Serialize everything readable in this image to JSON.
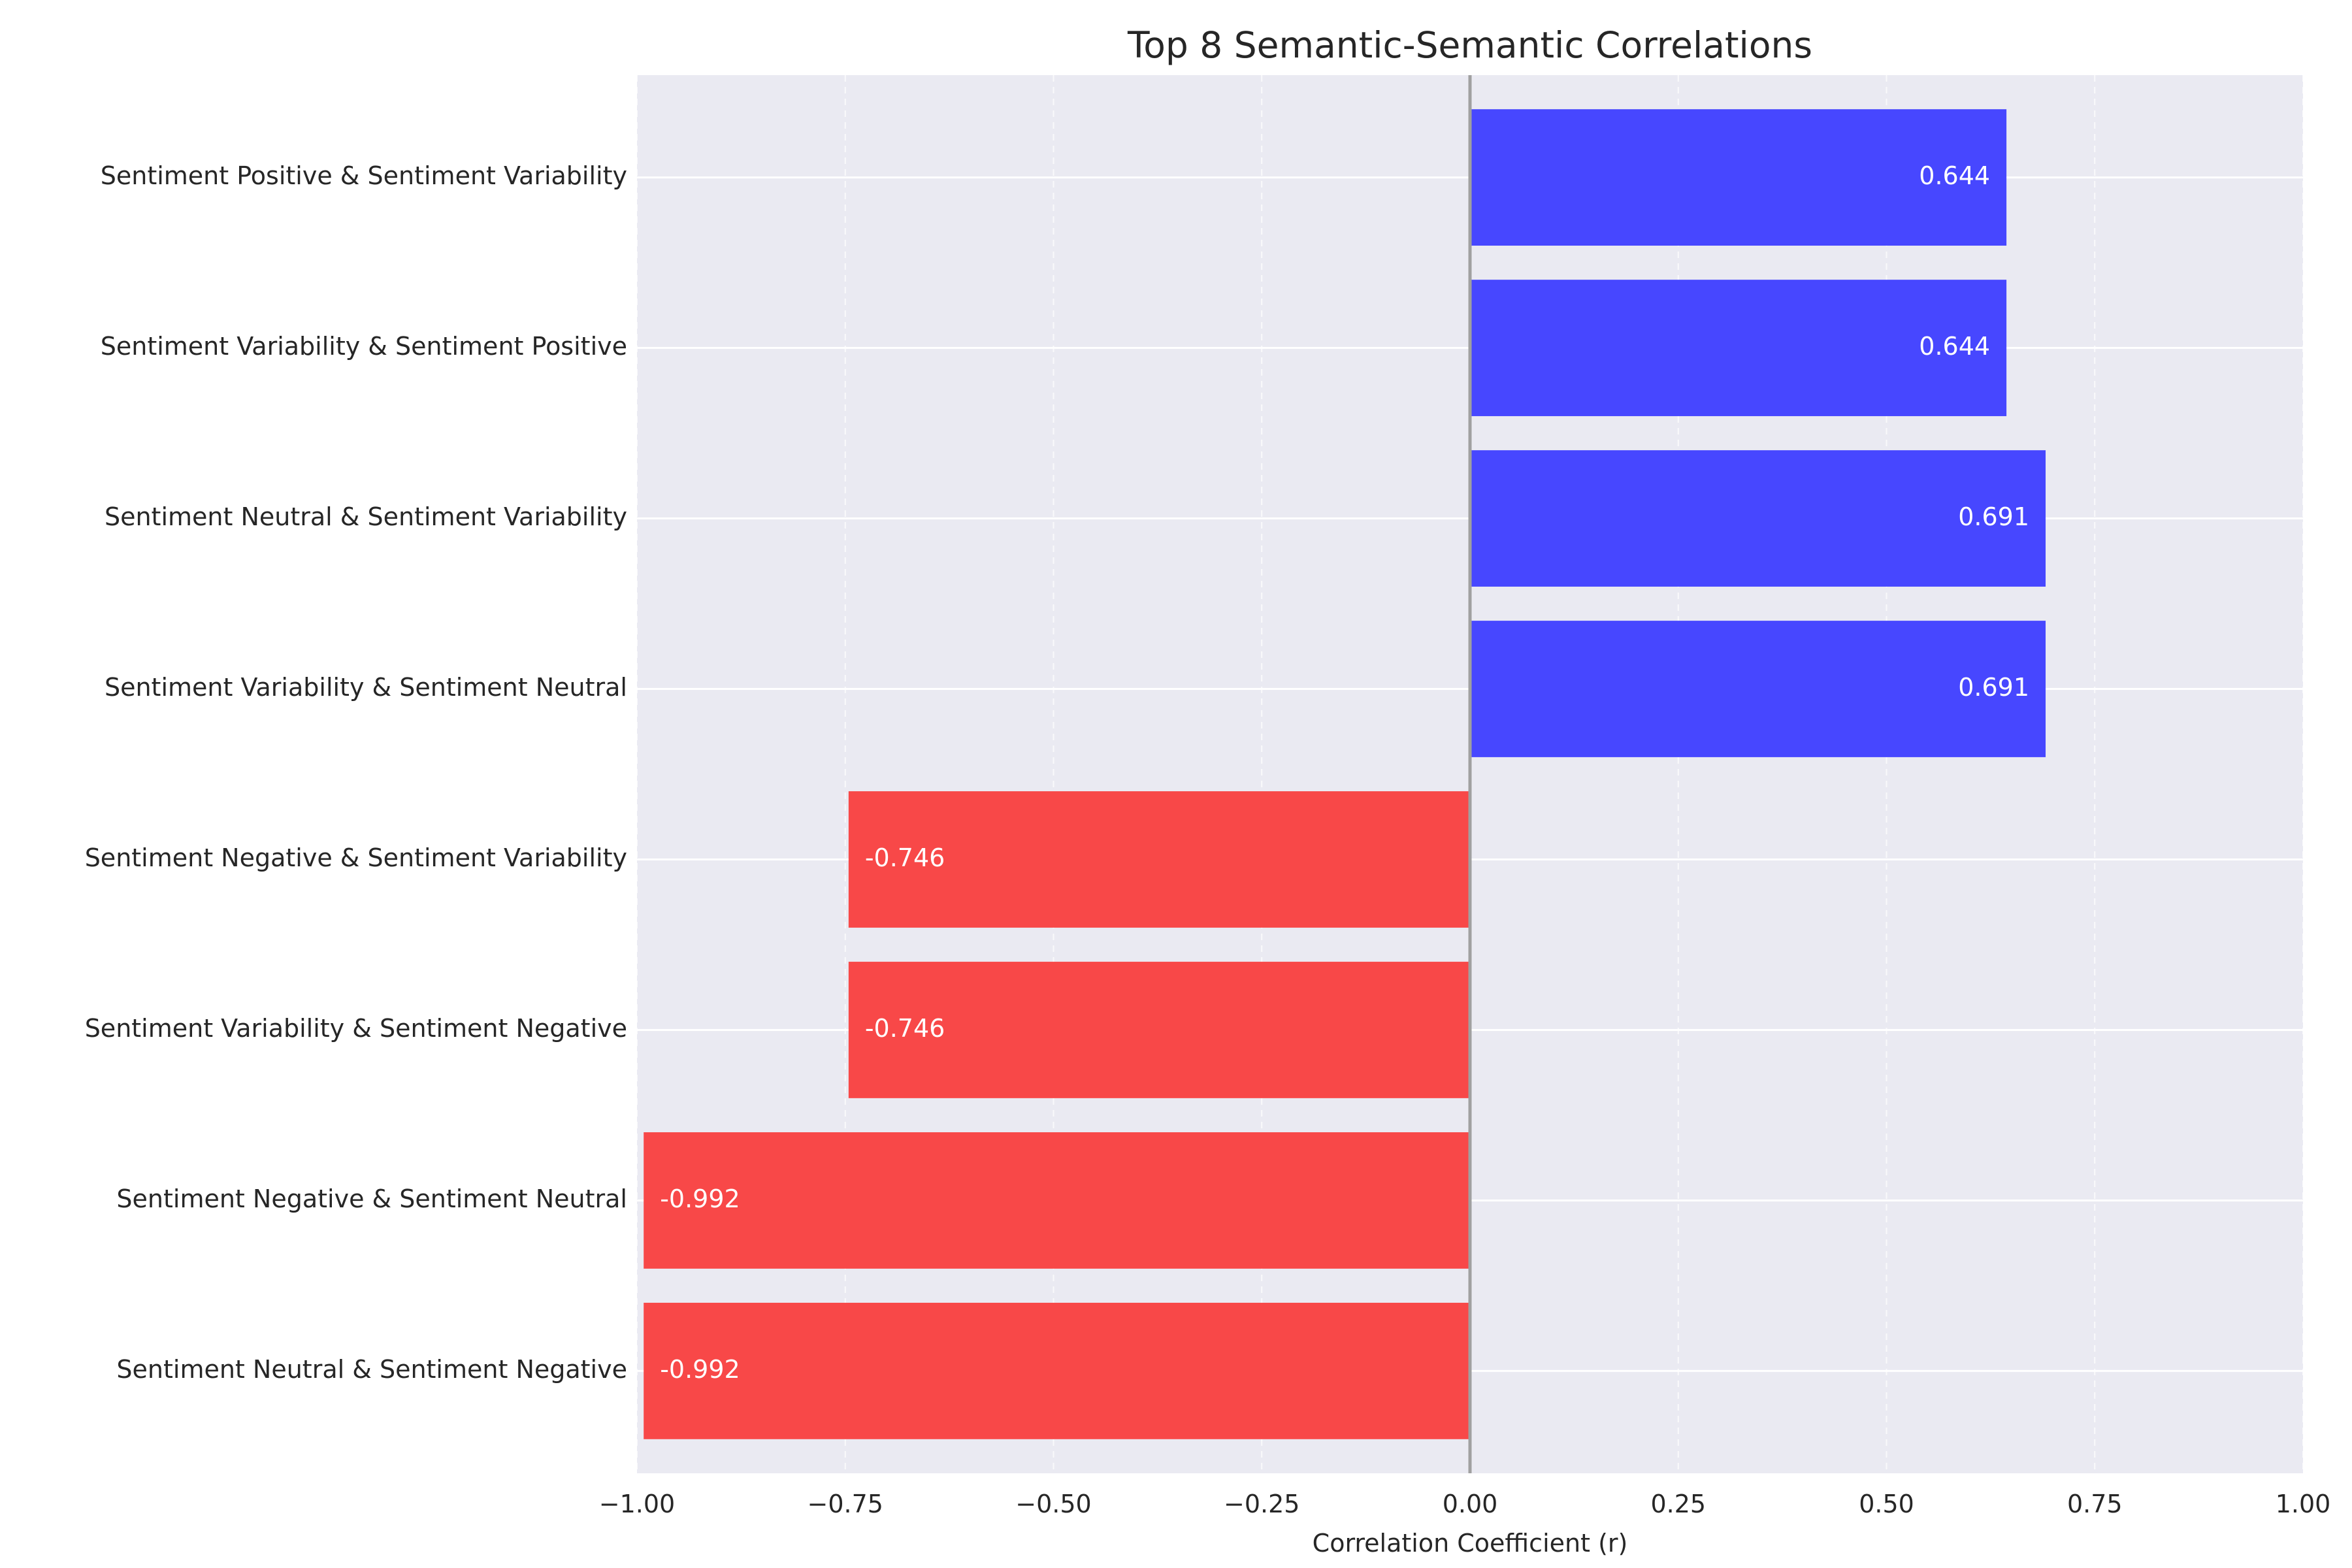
{
  "chart_data": {
    "type": "bar",
    "orientation": "horizontal",
    "title": "Top 8 Semantic-Semantic Correlations",
    "xlabel": "Correlation Coefficient (r)",
    "ylabel": "",
    "xlim": [
      -1.0,
      1.0
    ],
    "x_ticks": [
      -1.0,
      -0.75,
      -0.5,
      -0.25,
      0.0,
      0.25,
      0.5,
      0.75,
      1.0
    ],
    "x_tick_labels": [
      "−1.00",
      "−0.75",
      "−0.50",
      "−0.25",
      "0.00",
      "0.25",
      "0.50",
      "0.75",
      "1.00"
    ],
    "grid": true,
    "categories": [
      "Sentiment Positive & Sentiment Variability",
      "Sentiment Variability & Sentiment Positive",
      "Sentiment Neutral & Sentiment Variability",
      "Sentiment Variability & Sentiment Neutral",
      "Sentiment Negative & Sentiment Variability",
      "Sentiment Variability & Sentiment Negative",
      "Sentiment Negative & Sentiment Neutral",
      "Sentiment Neutral & Sentiment Negative"
    ],
    "values": [
      0.644,
      0.644,
      0.691,
      0.691,
      -0.746,
      -0.746,
      -0.992,
      -0.992
    ],
    "value_labels": [
      "0.644",
      "0.644",
      "0.691",
      "0.691",
      "-0.746",
      "-0.746",
      "-0.992",
      "-0.992"
    ],
    "colors": {
      "positive": "#4747ff",
      "negative": "#f84848",
      "plot_background": "#eaeaf2",
      "zero_line": "#a0a0a0"
    }
  }
}
